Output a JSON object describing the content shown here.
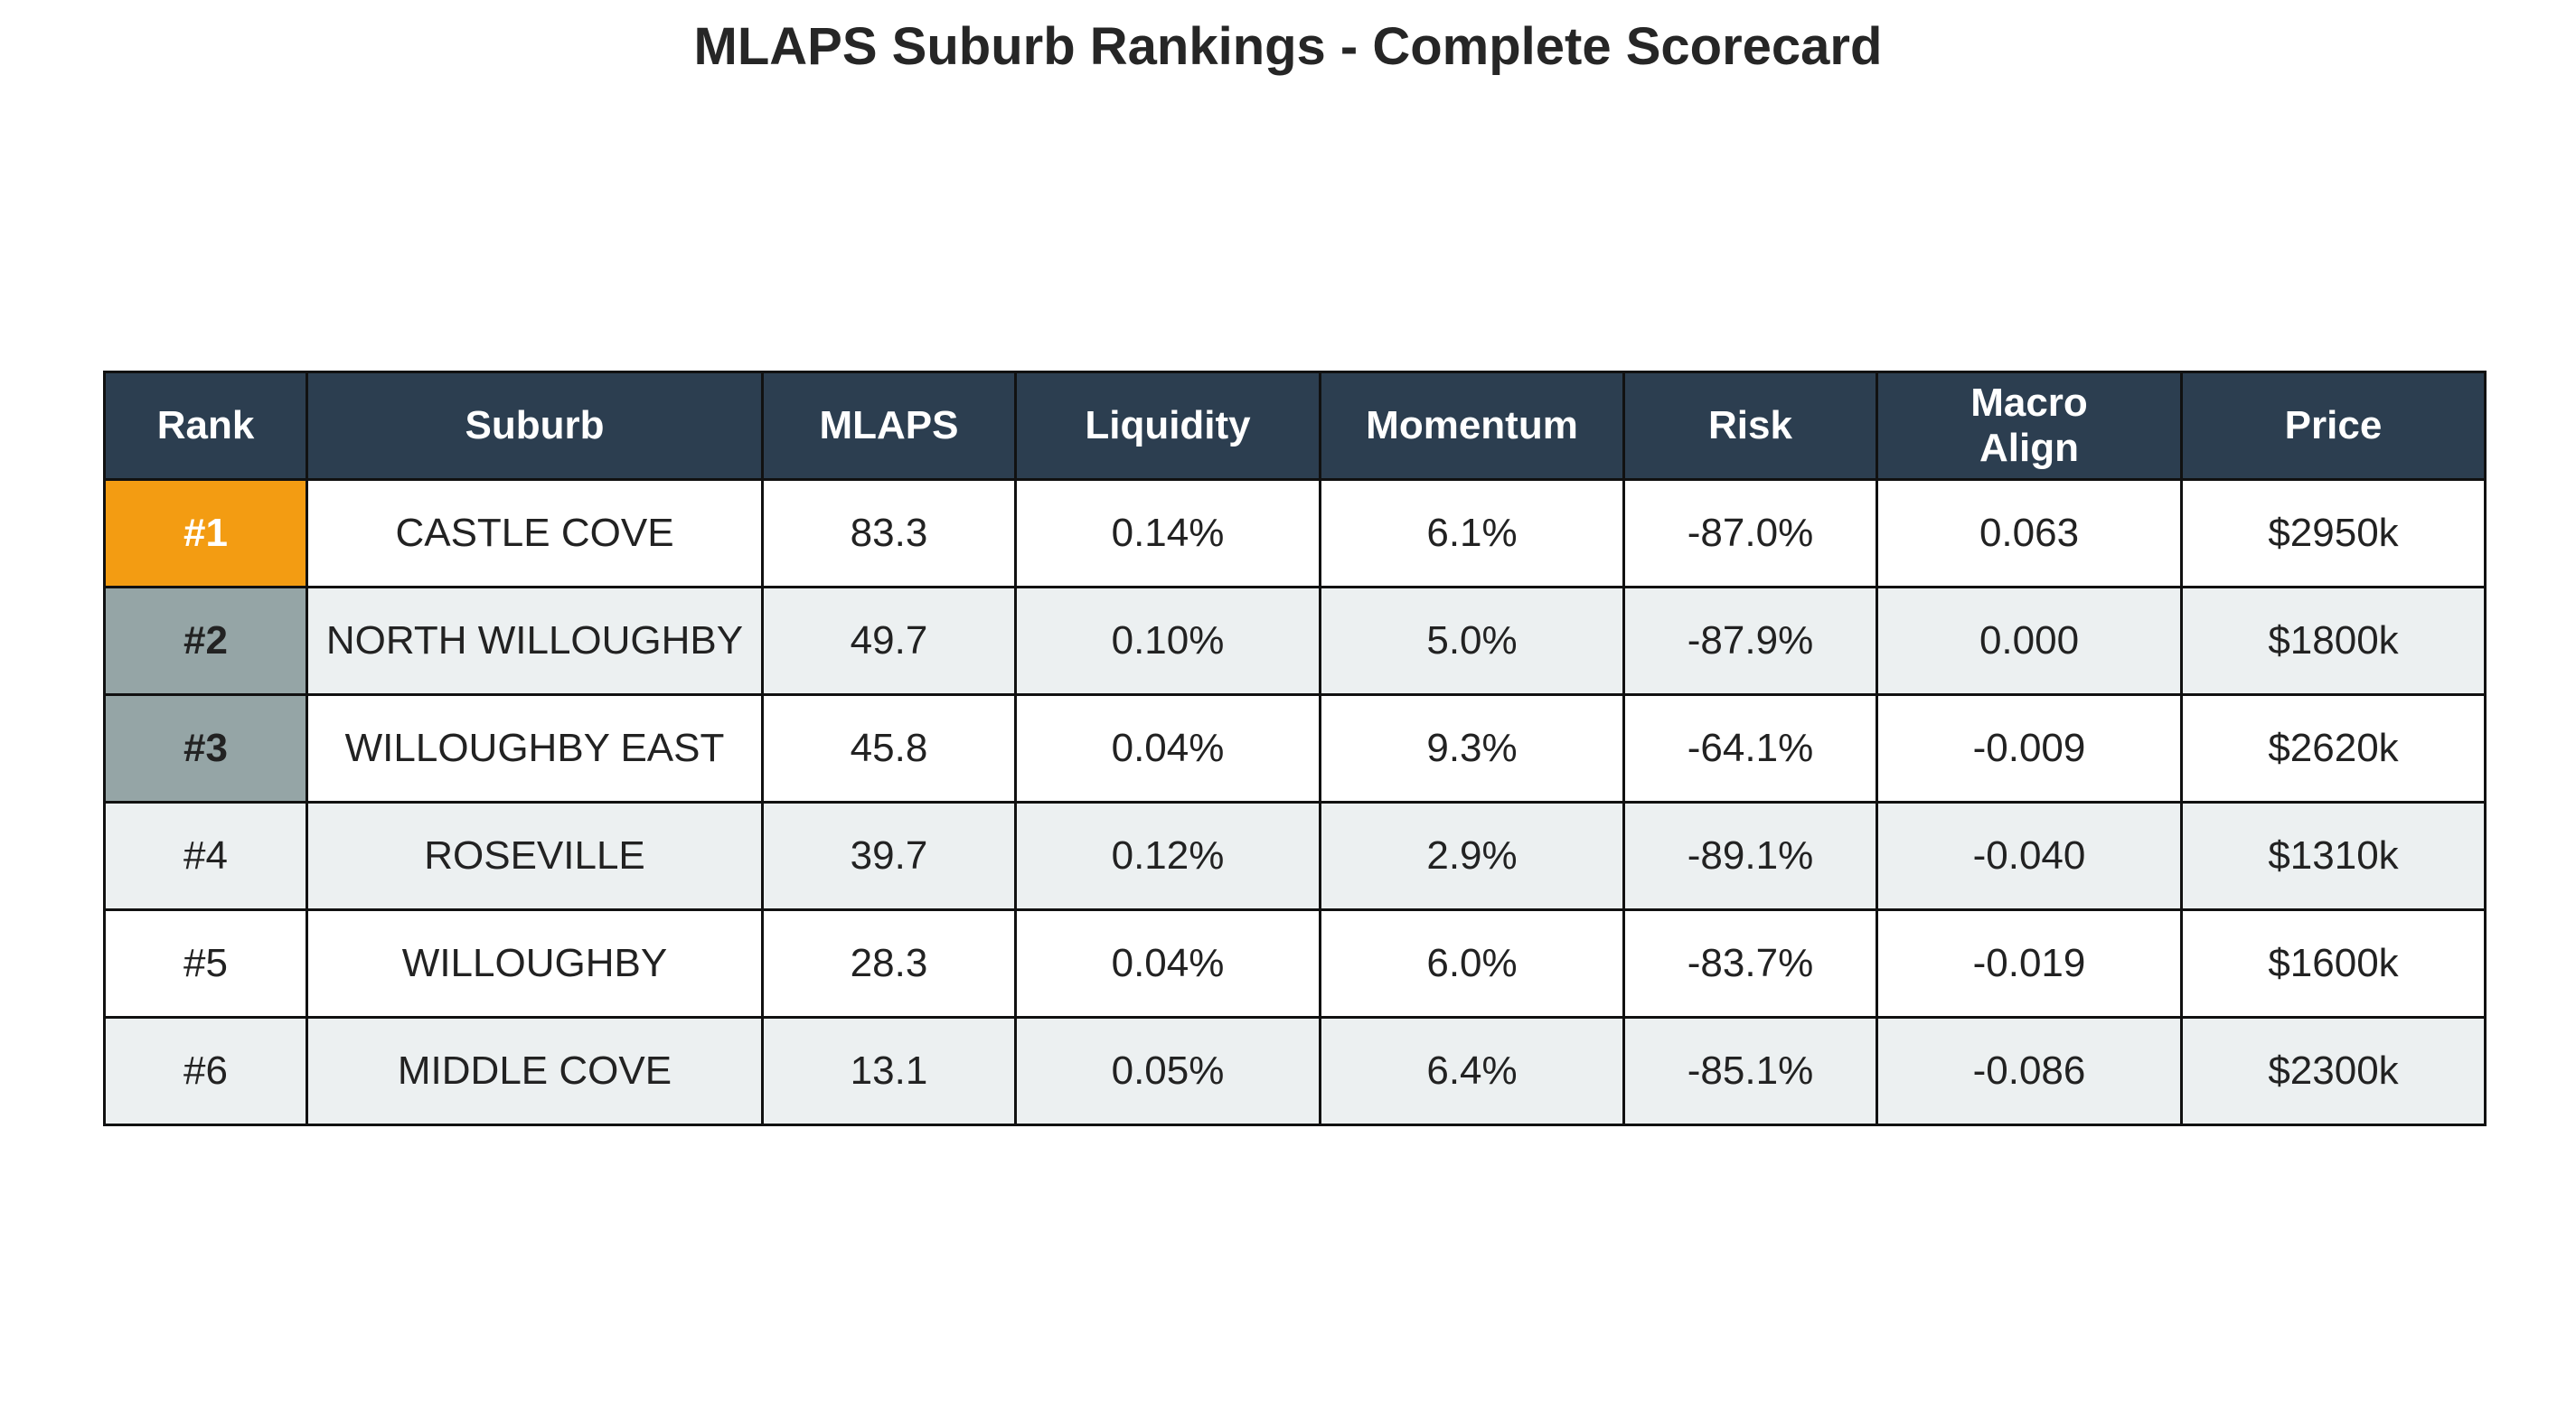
{
  "chart_data": {
    "type": "table",
    "title": "MLAPS Suburb Rankings - Complete Scorecard",
    "columns": [
      "Rank",
      "Suburb",
      "MLAPS",
      "Liquidity",
      "Momentum",
      "Risk",
      "Macro\nAlign",
      "Price"
    ],
    "rows": [
      {
        "rank": "#1",
        "suburb": "CASTLE COVE",
        "mlaps": "83.3",
        "liquidity": "0.14%",
        "momentum": "6.1%",
        "risk": "-87.0%",
        "macro_align": "0.063",
        "price": "$2950k",
        "highlight": "gold"
      },
      {
        "rank": "#2",
        "suburb": "NORTH WILLOUGHBY",
        "mlaps": "49.7",
        "liquidity": "0.10%",
        "momentum": "5.0%",
        "risk": "-87.9%",
        "macro_align": "0.000",
        "price": "$1800k",
        "highlight": "silver"
      },
      {
        "rank": "#3",
        "suburb": "WILLOUGHBY EAST",
        "mlaps": "45.8",
        "liquidity": "0.04%",
        "momentum": "9.3%",
        "risk": "-64.1%",
        "macro_align": "-0.009",
        "price": "$2620k",
        "highlight": "silver"
      },
      {
        "rank": "#4",
        "suburb": "ROSEVILLE",
        "mlaps": "39.7",
        "liquidity": "0.12%",
        "momentum": "2.9%",
        "risk": "-89.1%",
        "macro_align": "-0.040",
        "price": "$1310k",
        "highlight": "none"
      },
      {
        "rank": "#5",
        "suburb": "WILLOUGHBY",
        "mlaps": "28.3",
        "liquidity": "0.04%",
        "momentum": "6.0%",
        "risk": "-83.7%",
        "macro_align": "-0.019",
        "price": "$1600k",
        "highlight": "none"
      },
      {
        "rank": "#6",
        "suburb": "MIDDLE COVE",
        "mlaps": "13.1",
        "liquidity": "0.05%",
        "momentum": "6.4%",
        "risk": "-85.1%",
        "macro_align": "-0.086",
        "price": "$2300k",
        "highlight": "none"
      }
    ]
  },
  "colors": {
    "header_bg": "#2c3e50",
    "header_text": "#ffffff",
    "row_alt_bg": "#ecf0f1",
    "rank1_bg": "#f39c12",
    "rank2_3_bg": "#95a5a6",
    "border": "#111111"
  }
}
